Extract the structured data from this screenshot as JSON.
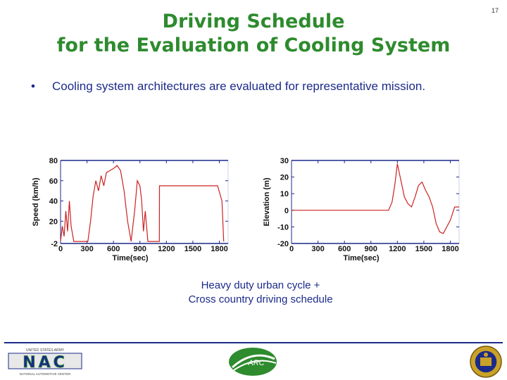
{
  "slide": {
    "number": "17",
    "title_line1": "Driving Schedule",
    "title_line2": "for the Evaluation of Cooling System",
    "bullet": "Cooling system architectures are evaluated for representative mission.",
    "caption_line1": "Heavy duty urban cycle +",
    "caption_line2": "Cross country driving schedule"
  },
  "colors": {
    "title": "#2e8b2e",
    "body_text": "#1b2a8a",
    "series": "#cc2222",
    "axis": "#1b2a8a"
  },
  "logos": {
    "left_small_text": "UNITED STATES ARMY",
    "left_main_text": "NAC",
    "left_bottom_text": "NATIONAL AUTOMOTIVE CENTER",
    "center_text": "ARC"
  },
  "chart_data": [
    {
      "type": "line",
      "xlabel": "Time(sec)",
      "ylabel": "Speed (km/h)",
      "xlim": [
        0,
        1900
      ],
      "ylim": [
        -2,
        80
      ],
      "xticks": [
        0,
        300,
        600,
        900,
        1200,
        1500,
        1800
      ],
      "yticks": [
        20,
        40,
        60,
        80
      ],
      "bottom_tick_label": "-2",
      "series": [
        {
          "x": [
            0,
            20,
            40,
            60,
            80,
            100,
            120,
            150,
            200,
            250,
            310,
            340,
            370,
            400,
            430,
            460,
            490,
            520,
            560,
            600,
            640,
            680,
            720,
            760,
            790,
            800,
            840,
            870,
            900,
            920,
            940,
            960,
            990,
            1080,
            1120,
            1122,
            1200,
            1300,
            1400,
            1500,
            1600,
            1700,
            1780,
            1830,
            1850
          ],
          "y": [
            0,
            15,
            5,
            30,
            10,
            40,
            15,
            0,
            0,
            0,
            0,
            20,
            45,
            60,
            50,
            65,
            55,
            68,
            70,
            72,
            75,
            70,
            50,
            20,
            5,
            0,
            30,
            60,
            55,
            40,
            10,
            30,
            0,
            0,
            0,
            55,
            55,
            55,
            55,
            55,
            55,
            55,
            55,
            40,
            0
          ]
        }
      ]
    },
    {
      "type": "line",
      "xlabel": "Time(sec)",
      "ylabel": "Elevation (m)",
      "xlim": [
        0,
        1900
      ],
      "ylim": [
        -20,
        30
      ],
      "xticks": [
        0,
        300,
        600,
        900,
        1200,
        1500,
        1800
      ],
      "yticks": [
        -20,
        -10,
        0,
        10,
        20,
        30
      ],
      "series": [
        {
          "x": [
            0,
            200,
            400,
            600,
            800,
            900,
            1100,
            1140,
            1170,
            1200,
            1240,
            1280,
            1320,
            1360,
            1400,
            1440,
            1480,
            1520,
            1560,
            1600,
            1640,
            1680,
            1720,
            1760,
            1800,
            1850,
            1900
          ],
          "y": [
            0,
            0,
            0,
            0,
            0,
            0,
            0,
            5,
            15,
            28,
            18,
            8,
            4,
            2,
            8,
            15,
            17,
            12,
            8,
            2,
            -8,
            -13,
            -14,
            -10,
            -6,
            2,
            2
          ]
        }
      ]
    }
  ]
}
